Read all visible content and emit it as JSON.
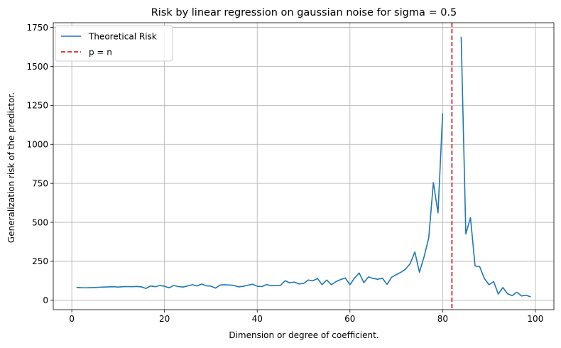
{
  "chart_data": {
    "type": "line",
    "title": "Risk by linear regression on gaussian noise for sigma = 0.5",
    "xlabel": "Dimension or degree of coefficient.",
    "ylabel": "Generalization risk of the predictor.",
    "xlim": [
      -4.0,
      104.0
    ],
    "ylim": [
      -60,
      1780
    ],
    "xticks": [
      0,
      20,
      40,
      60,
      80,
      100
    ],
    "yticks": [
      0,
      250,
      500,
      750,
      1000,
      1250,
      1500,
      1750
    ],
    "grid": true,
    "legend_position": "top-left",
    "colors": {
      "series": "#1f77b4",
      "vline": "#d62728",
      "grid": "#b0b0b0"
    },
    "series": [
      {
        "name": "Theoretical Risk",
        "style": "solid",
        "x": [
          1,
          2,
          3,
          4,
          5,
          6,
          7,
          8,
          9,
          10,
          11,
          12,
          13,
          14,
          15,
          16,
          17,
          18,
          19,
          20,
          21,
          22,
          23,
          24,
          25,
          26,
          27,
          28,
          29,
          30,
          31,
          32,
          33,
          34,
          35,
          36,
          37,
          38,
          39,
          40,
          41,
          42,
          43,
          44,
          45,
          46,
          47,
          48,
          49,
          50,
          51,
          52,
          53,
          54,
          55,
          56,
          57,
          58,
          59,
          60,
          61,
          62,
          63,
          64,
          65,
          66,
          67,
          68,
          69,
          70,
          71,
          72,
          73,
          74,
          75,
          76,
          77,
          78,
          79,
          80,
          null,
          84,
          85,
          86,
          87,
          88,
          89,
          90,
          91,
          92,
          93,
          94,
          95,
          96,
          97,
          98,
          99
        ],
        "y": [
          83,
          81,
          80,
          81,
          82,
          84,
          85,
          86,
          87,
          85,
          87,
          88,
          87,
          89,
          86,
          76,
          92,
          87,
          95,
          90,
          80,
          95,
          88,
          85,
          92,
          100,
          92,
          104,
          93,
          91,
          78,
          98,
          99,
          98,
          95,
          86,
          90,
          97,
          103,
          90,
          88,
          101,
          93,
          95,
          95,
          125,
          112,
          117,
          105,
          108,
          130,
          125,
          140,
          100,
          130,
          100,
          120,
          133,
          143,
          100,
          143,
          175,
          113,
          150,
          140,
          135,
          142,
          102,
          148,
          165,
          180,
          200,
          235,
          310,
          180,
          280,
          400,
          755,
          560,
          1200,
          null,
          1690,
          425,
          530,
          220,
          215,
          140,
          100,
          120,
          40,
          82,
          42,
          30,
          52,
          28,
          32,
          22
        ]
      },
      {
        "name": "p = n",
        "style": "dashed",
        "x_value": 82
      }
    ]
  }
}
